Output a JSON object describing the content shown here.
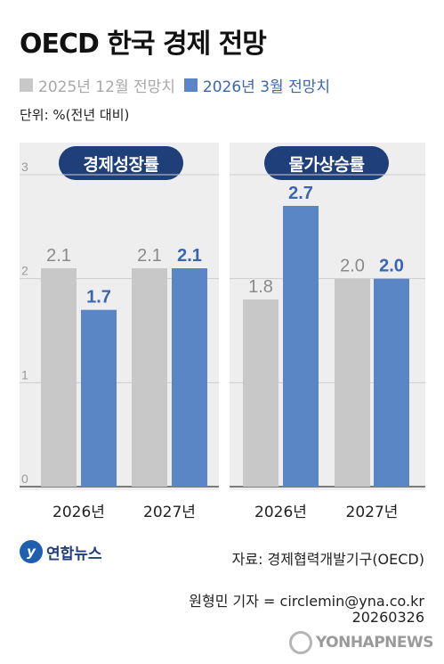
{
  "title": "OECD 한국 경제 전망",
  "legend": [
    {
      "label": "2025년 12월 전망치",
      "color": "#c8c8c8"
    },
    {
      "label": "2026년 3월 전망치",
      "color": "#5b86c5"
    }
  ],
  "unit": "단위: %(전년 대비)",
  "colors": {
    "prev": "#c8c8c8",
    "curr": "#5b86c5",
    "prev_label": "#8a8a8a",
    "curr_label": "#3a66b0",
    "pill": "#1f3f7a",
    "panel": "#eeeeee"
  },
  "chart_data": [
    {
      "type": "bar",
      "title": "경제성장률",
      "categories": [
        "2026년",
        "2027년"
      ],
      "ylim": [
        0,
        3
      ],
      "yticks": [
        "0",
        "1",
        "2",
        "3"
      ],
      "grid": true,
      "series": [
        {
          "name": "2025년 12월 전망치",
          "values": [
            2.1,
            2.1
          ],
          "labels": [
            "2.1",
            "2.1"
          ]
        },
        {
          "name": "2026년 3월 전망치",
          "values": [
            1.7,
            2.1
          ],
          "labels": [
            "1.7",
            "2.1"
          ]
        }
      ]
    },
    {
      "type": "bar",
      "title": "물가상승률",
      "categories": [
        "2026년",
        "2027년"
      ],
      "ylim": [
        0,
        3
      ],
      "grid": true,
      "series": [
        {
          "name": "2025년 12월 전망치",
          "values": [
            1.8,
            2.0
          ],
          "labels": [
            "1.8",
            "2.0"
          ]
        },
        {
          "name": "2026년 3월 전망치",
          "values": [
            2.7,
            2.0
          ],
          "labels": [
            "2.7",
            "2.0"
          ]
        }
      ]
    }
  ],
  "source": "자료: 경제협력개발기구(OECD)",
  "logo_text": "연합뉴스",
  "reporter": "원형민 기자 = circlemin@yna.co.kr",
  "date": "20260326",
  "watermark": "YONHAPNEWS"
}
